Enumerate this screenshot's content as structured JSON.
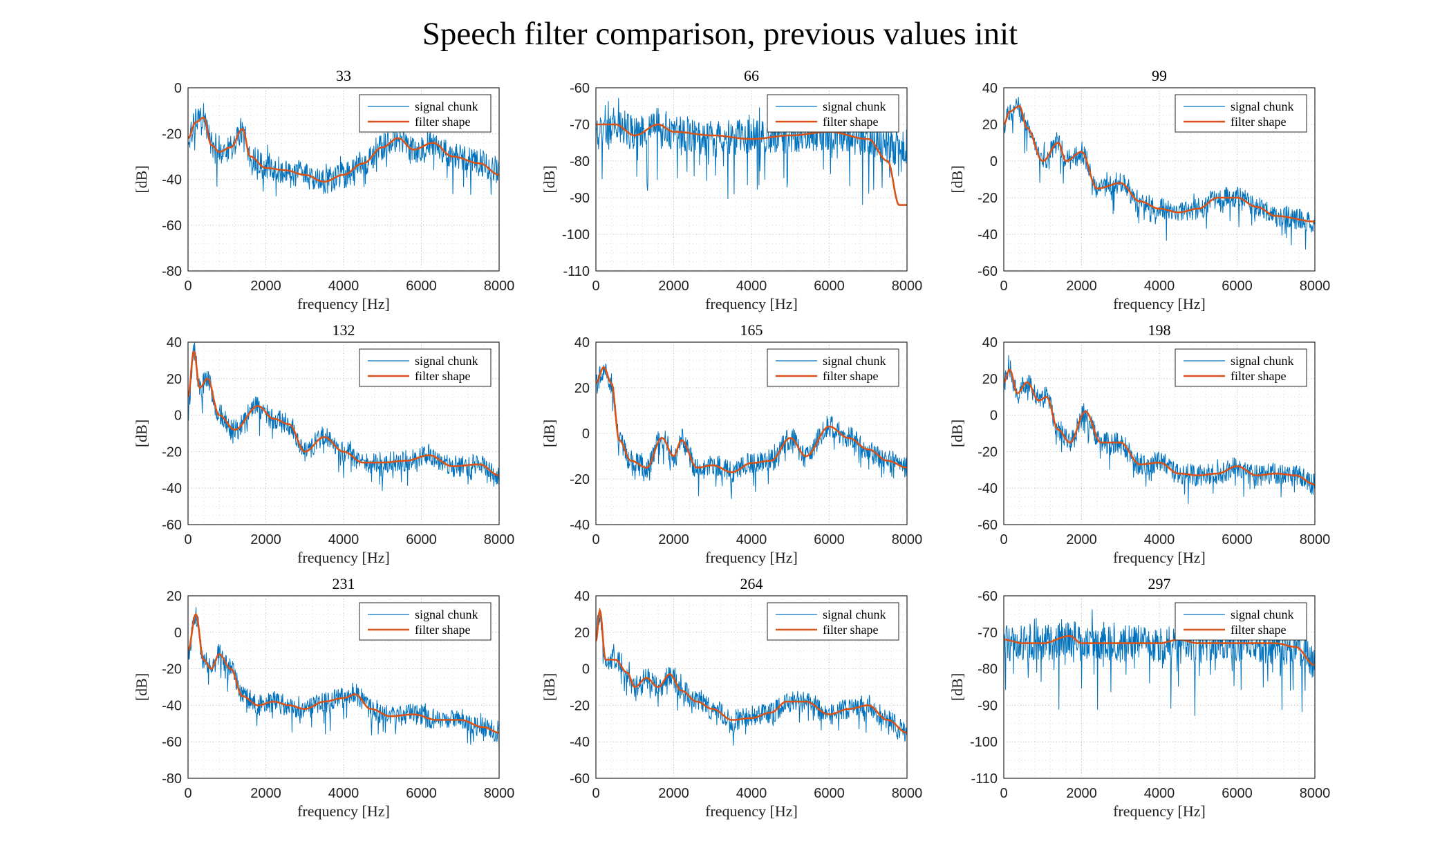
{
  "title": "Speech filter comparison, previous values init",
  "colors": {
    "signal": "#0072BD",
    "filter": "#D95319",
    "grid": "#c8c8c8",
    "axis": "#262626"
  },
  "chart_data": [
    {
      "type": "line",
      "title": "33",
      "xlabel": "frequency [Hz]",
      "ylabel": "[dB]",
      "xlim": [
        0,
        8000
      ],
      "ylim": [
        -80,
        0
      ],
      "xticks": [
        0,
        2000,
        4000,
        6000,
        8000
      ],
      "yticks": [
        -80,
        -60,
        -40,
        -20,
        0
      ],
      "grid": "on",
      "legend": "top-right",
      "series": [
        {
          "name": "signal chunk",
          "kind": "noisy",
          "noise": 6,
          "dips": 8,
          "x": [
            0,
            200,
            400,
            600,
            800,
            1100,
            1400,
            1600,
            2000,
            2500,
            3000,
            3500,
            4000,
            4500,
            5000,
            5400,
            5800,
            6300,
            6800,
            7500,
            8000
          ],
          "values": [
            -22,
            -15,
            -12,
            -25,
            -28,
            -26,
            -18,
            -30,
            -35,
            -36,
            -38,
            -41,
            -38,
            -33,
            -26,
            -22,
            -27,
            -24,
            -30,
            -33,
            -36
          ]
        },
        {
          "name": "filter shape",
          "kind": "smooth",
          "x": [
            0,
            200,
            400,
            600,
            800,
            1100,
            1400,
            1600,
            2000,
            2500,
            3000,
            3500,
            4000,
            4500,
            5000,
            5400,
            5800,
            6300,
            6800,
            7500,
            8000
          ],
          "values": [
            -22,
            -15,
            -13,
            -25,
            -28,
            -26,
            -18,
            -30,
            -35,
            -36,
            -38,
            -41,
            -38,
            -33,
            -26,
            -22,
            -27,
            -24,
            -30,
            -33,
            -38
          ]
        }
      ]
    },
    {
      "type": "line",
      "title": "66",
      "xlabel": "frequency [Hz]",
      "ylabel": "[dB]",
      "xlim": [
        0,
        8000
      ],
      "ylim": [
        -110,
        -60
      ],
      "xticks": [
        0,
        2000,
        4000,
        6000,
        8000
      ],
      "yticks": [
        -110,
        -100,
        -90,
        -80,
        -70,
        -60
      ],
      "grid": "on",
      "legend": "top-right",
      "series": [
        {
          "name": "signal chunk",
          "kind": "noisy",
          "noise": 5,
          "dips": 10,
          "x": [
            0,
            500,
            1000,
            1600,
            2000,
            3000,
            4000,
            5000,
            6000,
            7000,
            7500,
            8000
          ],
          "values": [
            -72,
            -70,
            -72,
            -70,
            -72,
            -74,
            -73,
            -73,
            -72,
            -74,
            -76,
            -76
          ]
        },
        {
          "name": "filter shape",
          "kind": "smooth",
          "x": [
            0,
            500,
            1000,
            1600,
            2000,
            3000,
            4000,
            5000,
            6000,
            7000,
            7500,
            7800,
            8000
          ],
          "values": [
            -70,
            -70,
            -73,
            -70,
            -72,
            -73,
            -74,
            -73,
            -72,
            -74,
            -80,
            -92,
            -92
          ]
        }
      ]
    },
    {
      "type": "line",
      "title": "99",
      "xlabel": "frequency [Hz]",
      "ylabel": "[dB]",
      "xlim": [
        0,
        8000
      ],
      "ylim": [
        -60,
        40
      ],
      "xticks": [
        0,
        2000,
        4000,
        6000,
        8000
      ],
      "yticks": [
        -60,
        -40,
        -20,
        0,
        20,
        40
      ],
      "grid": "on",
      "legend": "top-right",
      "series": [
        {
          "name": "signal chunk",
          "kind": "noisy",
          "noise": 6,
          "dips": 8,
          "x": [
            0,
            150,
            400,
            600,
            1000,
            1400,
            1600,
            2000,
            2400,
            3000,
            3500,
            4000,
            4500,
            5000,
            5500,
            6000,
            6500,
            7000,
            8000
          ],
          "values": [
            20,
            25,
            30,
            18,
            0,
            10,
            0,
            5,
            -15,
            -12,
            -22,
            -26,
            -28,
            -26,
            -20,
            -20,
            -25,
            -30,
            -33
          ]
        },
        {
          "name": "filter shape",
          "kind": "smooth",
          "x": [
            0,
            150,
            400,
            600,
            1000,
            1400,
            1600,
            2000,
            2400,
            3000,
            3500,
            4000,
            4500,
            5000,
            5500,
            6000,
            6500,
            7000,
            8000
          ],
          "values": [
            20,
            27,
            30,
            18,
            0,
            10,
            0,
            5,
            -15,
            -12,
            -22,
            -26,
            -28,
            -26,
            -20,
            -20,
            -25,
            -30,
            -33
          ]
        }
      ]
    },
    {
      "type": "line",
      "title": "132",
      "xlabel": "frequency [Hz]",
      "ylabel": "[dB]",
      "xlim": [
        0,
        8000
      ],
      "ylim": [
        -60,
        40
      ],
      "xticks": [
        0,
        2000,
        4000,
        6000,
        8000
      ],
      "yticks": [
        -60,
        -40,
        -20,
        0,
        20,
        40
      ],
      "grid": "on",
      "legend": "top-right",
      "series": [
        {
          "name": "signal chunk",
          "kind": "noisy",
          "noise": 6,
          "dips": 8,
          "x": [
            0,
            150,
            300,
            500,
            800,
            1200,
            1800,
            2200,
            2600,
            3000,
            3500,
            4000,
            4500,
            5000,
            5600,
            6200,
            6800,
            7500,
            8000
          ],
          "values": [
            5,
            35,
            15,
            20,
            0,
            -8,
            5,
            -2,
            -5,
            -20,
            -12,
            -20,
            -26,
            -26,
            -25,
            -22,
            -28,
            -27,
            -33
          ]
        },
        {
          "name": "filter shape",
          "kind": "smooth",
          "x": [
            0,
            150,
            300,
            500,
            800,
            1200,
            1800,
            2200,
            2600,
            3000,
            3500,
            4000,
            4500,
            5000,
            5600,
            6200,
            6800,
            7500,
            8000
          ],
          "values": [
            10,
            35,
            15,
            20,
            0,
            -8,
            5,
            -2,
            -5,
            -20,
            -12,
            -20,
            -26,
            -26,
            -25,
            -22,
            -28,
            -27,
            -33
          ]
        }
      ]
    },
    {
      "type": "line",
      "title": "165",
      "xlabel": "frequency [Hz]",
      "ylabel": "[dB]",
      "xlim": [
        0,
        8000
      ],
      "ylim": [
        -40,
        40
      ],
      "xticks": [
        0,
        2000,
        4000,
        6000,
        8000
      ],
      "yticks": [
        -40,
        -20,
        0,
        20,
        40
      ],
      "grid": "on",
      "legend": "top-right",
      "series": [
        {
          "name": "signal chunk",
          "kind": "noisy",
          "noise": 5,
          "dips": 6,
          "x": [
            0,
            200,
            400,
            600,
            900,
            1300,
            1700,
            2000,
            2200,
            2600,
            3000,
            3500,
            4000,
            4500,
            5000,
            5400,
            6000,
            6500,
            7000,
            7500,
            8000
          ],
          "values": [
            22,
            28,
            22,
            -3,
            -12,
            -15,
            -2,
            -10,
            -3,
            -15,
            -14,
            -17,
            -13,
            -12,
            -2,
            -10,
            3,
            -2,
            -7,
            -12,
            -15
          ]
        },
        {
          "name": "filter shape",
          "kind": "smooth",
          "x": [
            0,
            200,
            400,
            600,
            900,
            1300,
            1700,
            2000,
            2200,
            2600,
            3000,
            3500,
            4000,
            4500,
            5000,
            5400,
            6000,
            6500,
            7000,
            7500,
            8000
          ],
          "values": [
            22,
            29,
            22,
            -3,
            -12,
            -15,
            -2,
            -10,
            -3,
            -15,
            -14,
            -17,
            -13,
            -12,
            -2,
            -10,
            3,
            -2,
            -7,
            -12,
            -15
          ]
        }
      ]
    },
    {
      "type": "line",
      "title": "198",
      "xlabel": "frequency [Hz]",
      "ylabel": "[dB]",
      "xlim": [
        0,
        8000
      ],
      "ylim": [
        -60,
        40
      ],
      "xticks": [
        0,
        2000,
        4000,
        6000,
        8000
      ],
      "yticks": [
        -60,
        -40,
        -20,
        0,
        20,
        40
      ],
      "grid": "on",
      "legend": "top-right",
      "series": [
        {
          "name": "signal chunk",
          "kind": "noisy",
          "noise": 6,
          "dips": 8,
          "x": [
            0,
            150,
            350,
            600,
            900,
            1100,
            1400,
            1700,
            2100,
            2500,
            3000,
            3500,
            4000,
            4500,
            5000,
            5500,
            6000,
            6500,
            7000,
            7500,
            8000
          ],
          "values": [
            18,
            25,
            12,
            18,
            8,
            10,
            -8,
            -15,
            2,
            -15,
            -15,
            -27,
            -26,
            -32,
            -33,
            -32,
            -28,
            -33,
            -32,
            -33,
            -38
          ]
        },
        {
          "name": "filter shape",
          "kind": "smooth",
          "x": [
            0,
            150,
            350,
            600,
            900,
            1100,
            1400,
            1700,
            2100,
            2500,
            3000,
            3500,
            4000,
            4500,
            5000,
            5500,
            6000,
            6500,
            7000,
            7500,
            8000
          ],
          "values": [
            18,
            25,
            12,
            18,
            8,
            10,
            -8,
            -15,
            2,
            -15,
            -15,
            -27,
            -26,
            -32,
            -33,
            -32,
            -28,
            -33,
            -32,
            -33,
            -38
          ]
        }
      ]
    },
    {
      "type": "line",
      "title": "231",
      "xlabel": "frequency [Hz]",
      "ylabel": "[dB]",
      "xlim": [
        0,
        8000
      ],
      "ylim": [
        -80,
        20
      ],
      "xticks": [
        0,
        2000,
        4000,
        6000,
        8000
      ],
      "yticks": [
        -80,
        -60,
        -40,
        -20,
        0,
        20
      ],
      "grid": "on",
      "legend": "top-right",
      "series": [
        {
          "name": "signal chunk",
          "kind": "noisy",
          "noise": 6,
          "dips": 8,
          "x": [
            0,
            200,
            400,
            600,
            800,
            1100,
            1400,
            1800,
            2200,
            2600,
            3000,
            3500,
            4000,
            4300,
            4700,
            5200,
            5800,
            6400,
            7000,
            7600,
            8000
          ],
          "values": [
            -10,
            8,
            -15,
            -20,
            -12,
            -20,
            -35,
            -40,
            -38,
            -40,
            -42,
            -38,
            -36,
            -34,
            -42,
            -46,
            -45,
            -48,
            -48,
            -52,
            -55
          ]
        },
        {
          "name": "filter shape",
          "kind": "smooth",
          "x": [
            0,
            200,
            400,
            600,
            800,
            1100,
            1400,
            1800,
            2200,
            2600,
            3000,
            3500,
            4000,
            4300,
            4700,
            5200,
            5800,
            6400,
            7000,
            7600,
            8000
          ],
          "values": [
            -10,
            10,
            -15,
            -20,
            -12,
            -20,
            -35,
            -40,
            -38,
            -40,
            -42,
            -38,
            -36,
            -34,
            -42,
            -46,
            -45,
            -48,
            -48,
            -52,
            -55
          ]
        }
      ]
    },
    {
      "type": "line",
      "title": "264",
      "xlabel": "frequency [Hz]",
      "ylabel": "[dB]",
      "xlim": [
        0,
        8000
      ],
      "ylim": [
        -60,
        40
      ],
      "xticks": [
        0,
        2000,
        4000,
        6000,
        8000
      ],
      "yticks": [
        -60,
        -40,
        -20,
        0,
        20,
        40
      ],
      "grid": "on",
      "legend": "top-right",
      "series": [
        {
          "name": "signal chunk",
          "kind": "noisy",
          "noise": 6,
          "dips": 8,
          "x": [
            0,
            100,
            250,
            500,
            800,
            1000,
            1300,
            1600,
            1900,
            2200,
            2600,
            3000,
            3500,
            4000,
            4500,
            4900,
            5400,
            6000,
            6500,
            7000,
            7500,
            8000
          ],
          "values": [
            20,
            30,
            5,
            5,
            -2,
            -10,
            -5,
            -10,
            -3,
            -12,
            -18,
            -22,
            -28,
            -27,
            -24,
            -18,
            -18,
            -25,
            -22,
            -20,
            -28,
            -35
          ]
        },
        {
          "name": "filter shape",
          "kind": "smooth",
          "x": [
            0,
            100,
            250,
            500,
            800,
            1000,
            1300,
            1600,
            1900,
            2200,
            2600,
            3000,
            3500,
            4000,
            4500,
            4900,
            5400,
            6000,
            6500,
            7000,
            7500,
            8000
          ],
          "values": [
            15,
            32,
            5,
            5,
            -2,
            -10,
            -5,
            -10,
            -3,
            -12,
            -18,
            -22,
            -28,
            -27,
            -24,
            -18,
            -18,
            -25,
            -22,
            -20,
            -28,
            -35
          ]
        }
      ]
    },
    {
      "type": "line",
      "title": "297",
      "xlabel": "frequency [Hz]",
      "ylabel": "[dB]",
      "xlim": [
        0,
        8000
      ],
      "ylim": [
        -110,
        -60
      ],
      "xticks": [
        0,
        2000,
        4000,
        6000,
        8000
      ],
      "yticks": [
        -110,
        -100,
        -90,
        -80,
        -70,
        -60
      ],
      "grid": "on",
      "legend": "top-right",
      "series": [
        {
          "name": "signal chunk",
          "kind": "noisy",
          "noise": 5,
          "dips": 10,
          "x": [
            0,
            500,
            1000,
            1700,
            2000,
            3000,
            4000,
            4500,
            5000,
            6000,
            7000,
            7500,
            8000
          ],
          "values": [
            -73,
            -73,
            -73,
            -71,
            -73,
            -73,
            -73,
            -72,
            -73,
            -73,
            -74,
            -74,
            -78
          ]
        },
        {
          "name": "filter shape",
          "kind": "smooth",
          "x": [
            0,
            500,
            1000,
            1700,
            2000,
            3000,
            4000,
            4500,
            5000,
            6000,
            7000,
            7500,
            8000
          ],
          "values": [
            -72,
            -73,
            -73,
            -71,
            -73,
            -73,
            -73,
            -72,
            -73,
            -73,
            -73,
            -74,
            -79
          ]
        }
      ]
    }
  ]
}
